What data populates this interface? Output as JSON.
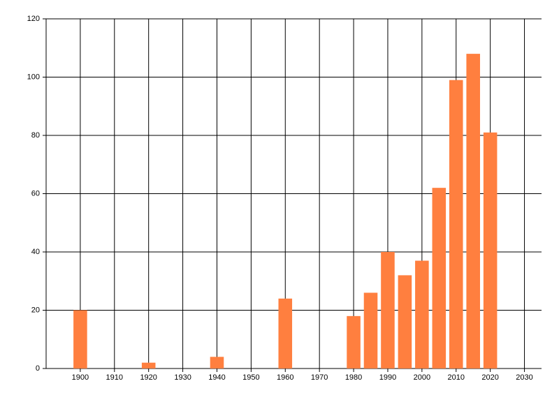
{
  "chart_data": {
    "type": "bar",
    "x": [
      1900,
      1920,
      1940,
      1960,
      1980,
      1985,
      1990,
      1995,
      2000,
      2005,
      2010,
      2015,
      2020
    ],
    "values": [
      20,
      2,
      4,
      24,
      18,
      26,
      40,
      32,
      37,
      62,
      99,
      108,
      81
    ],
    "color": "#ff7f3f",
    "xlim": [
      1890,
      2035
    ],
    "xticks": [
      1900,
      1910,
      1920,
      1930,
      1940,
      1950,
      1960,
      1970,
      1980,
      1990,
      2000,
      2010,
      2020,
      2030
    ],
    "ylim": [
      0,
      120
    ],
    "yticks": [
      0,
      20,
      40,
      60,
      80,
      100,
      120
    ],
    "grid": true
  }
}
